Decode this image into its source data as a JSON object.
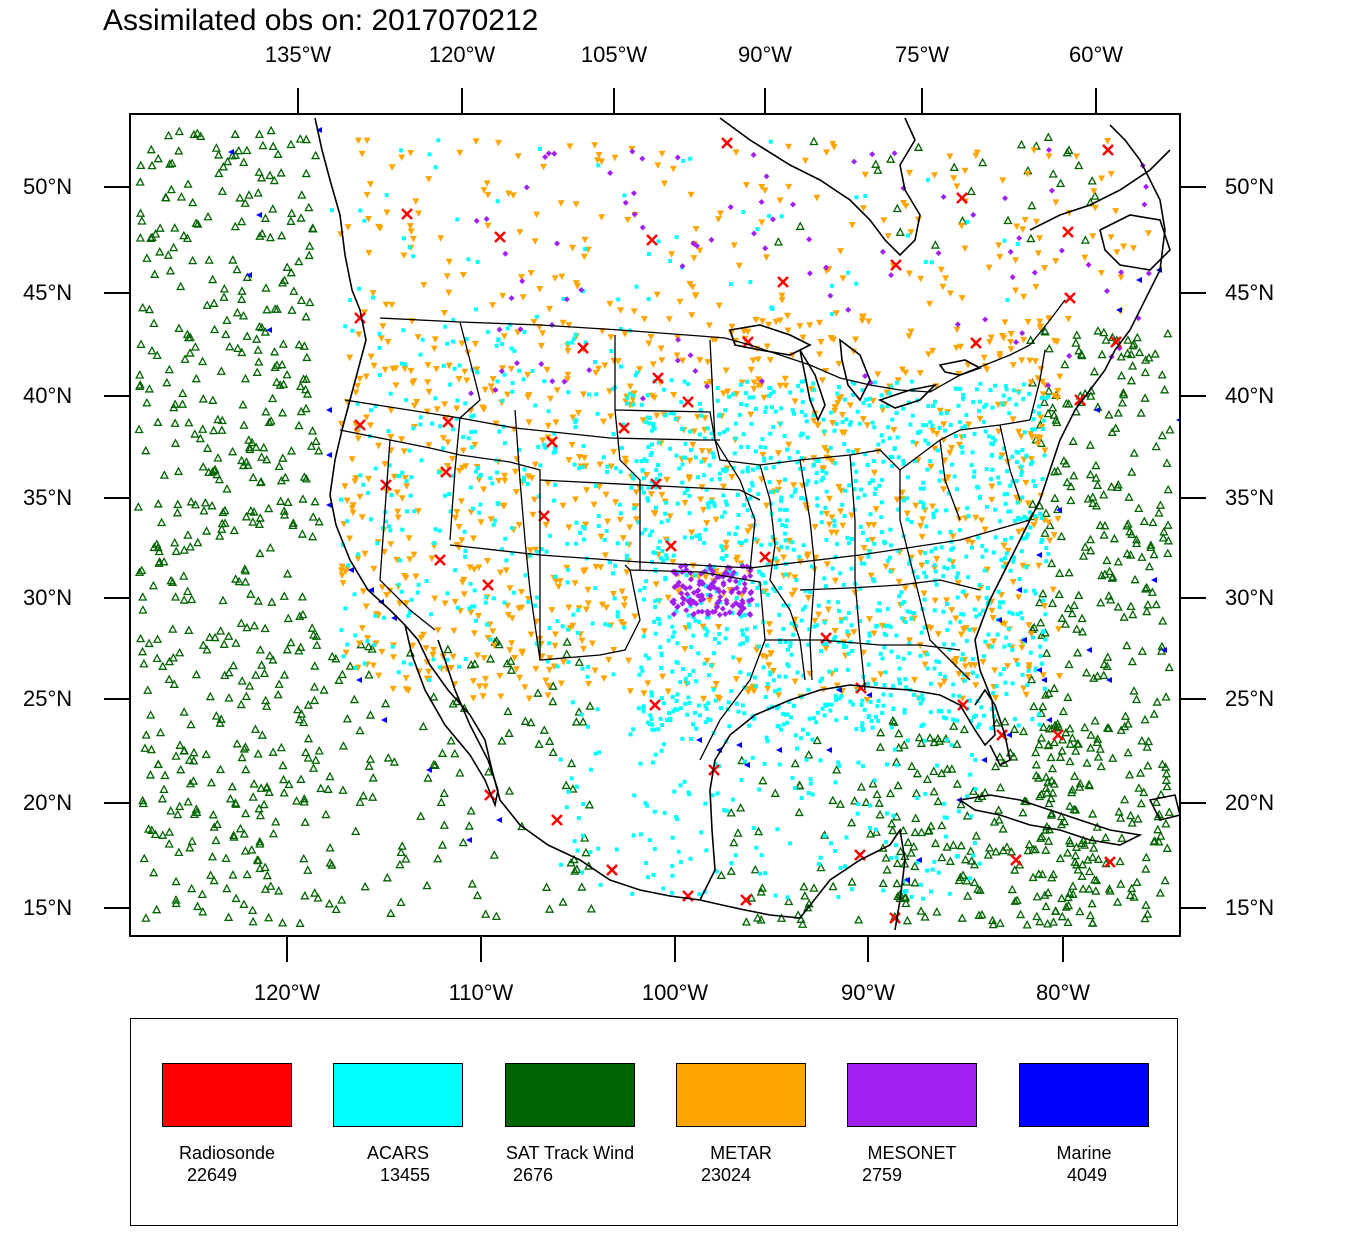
{
  "title": "Assimilated obs on: 2017070212",
  "axes": {
    "top_lon_labels": [
      "135°W",
      "120°W",
      "105°W",
      "90°W",
      "75°W",
      "60°W"
    ],
    "bottom_lon_labels": [
      "120°W",
      "110°W",
      "100°W",
      "90°W",
      "80°W"
    ],
    "lat_labels": [
      "50°N",
      "45°N",
      "40°N",
      "35°N",
      "30°N",
      "25°N",
      "20°N",
      "15°N"
    ]
  },
  "colors": {
    "radiosonde": "#ff0000",
    "acars": "#00ffff",
    "sat_track_wind": "#006400",
    "metar": "#ffa500",
    "mesonet": "#a020f0",
    "marine": "#0000ff"
  },
  "legend": [
    {
      "name": "Radiosonde",
      "count": "22649",
      "color": "#ff0000",
      "icon": "red-x-marker"
    },
    {
      "name": "ACARS",
      "count": "13455",
      "color": "#00ffff",
      "icon": "cyan-dot-marker"
    },
    {
      "name": "SAT Track Wind",
      "count": "2676",
      "color": "#006400",
      "icon": "green-triangle-marker"
    },
    {
      "name": "METAR",
      "count": "23024",
      "color": "#ffa500",
      "icon": "orange-inverted-triangle-marker"
    },
    {
      "name": "MESONET",
      "count": "2759",
      "color": "#a020f0",
      "icon": "purple-diamond-marker"
    },
    {
      "name": "Marine",
      "count": "4049",
      "color": "#0000ff",
      "icon": "blue-arrow-marker"
    }
  ]
}
